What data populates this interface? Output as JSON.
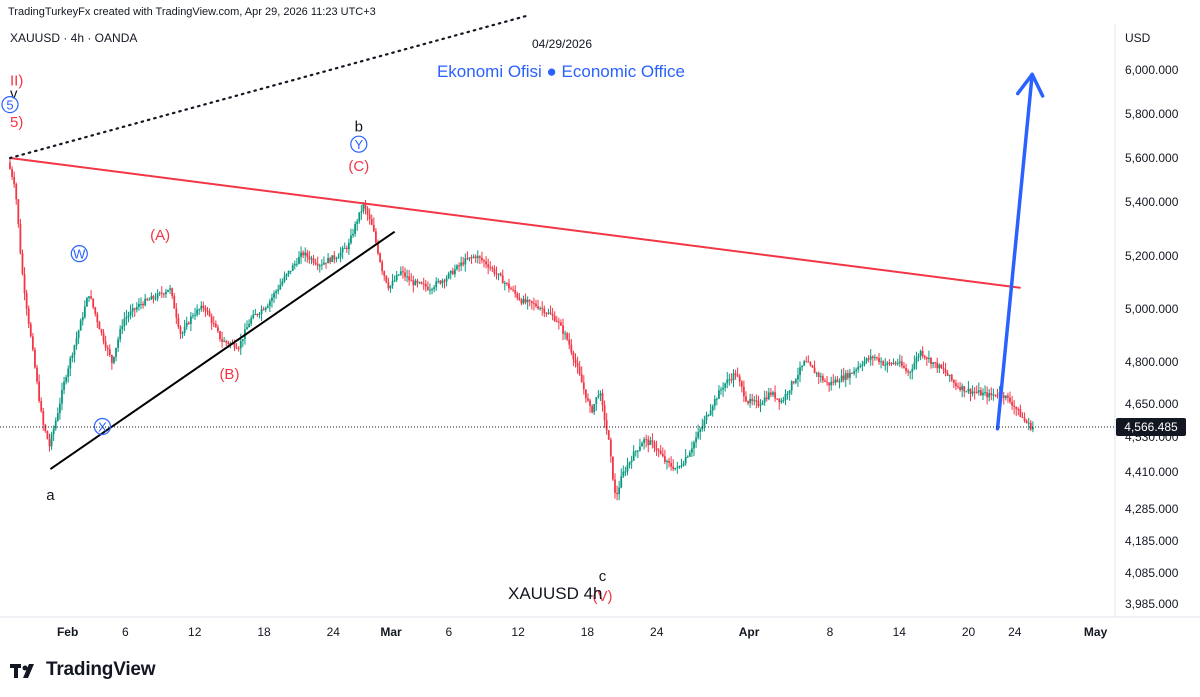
{
  "header": {
    "credit": "TradingTurkeyFx created with TradingView.com, Apr 29, 2026 11:23 UTC+3"
  },
  "footer": {
    "logo_text": "TradingView"
  },
  "colors": {
    "up": "#089981",
    "down": "#f23645",
    "resistance": "#f23645",
    "support": "#000000",
    "forecast": "#2962ff",
    "wave_red": "#f23645",
    "wave_blue": "#2962ff",
    "text": "#131722"
  },
  "chart_data": {
    "type": "candlestick",
    "symbol_line": "XAUUSD · 4h · OANDA",
    "watermark": "XAUUSD   4h",
    "date_label": "04/29/2026",
    "brand_note": "Ekonomi Ofisi ● Economic Office",
    "currency": "USD",
    "last_price": "4,566.485",
    "last_value": 4566.485,
    "y_ticks": [
      {
        "label": "6,000.000",
        "value": 6000
      },
      {
        "label": "5,800.000",
        "value": 5800
      },
      {
        "label": "5,600.000",
        "value": 5600
      },
      {
        "label": "5,400.000",
        "value": 5400
      },
      {
        "label": "5,200.000",
        "value": 5200
      },
      {
        "label": "5,000.000",
        "value": 5000
      },
      {
        "label": "4,800.000",
        "value": 4800
      },
      {
        "label": "4,650.000",
        "value": 4650
      },
      {
        "label": "4,530.000",
        "value": 4530
      },
      {
        "label": "4,410.000",
        "value": 4410
      },
      {
        "label": "4,285.000",
        "value": 4285
      },
      {
        "label": "4,185.000",
        "value": 4185
      },
      {
        "label": "4,085.000",
        "value": 4085
      },
      {
        "label": "3,985.000",
        "value": 3985
      }
    ],
    "x_ticks": [
      {
        "label": "Feb",
        "bold": true,
        "day": 3
      },
      {
        "label": "6",
        "bold": false,
        "day": 8
      },
      {
        "label": "12",
        "bold": false,
        "day": 14
      },
      {
        "label": "18",
        "bold": false,
        "day": 20
      },
      {
        "label": "24",
        "bold": false,
        "day": 26
      },
      {
        "label": "Mar",
        "bold": true,
        "day": 31
      },
      {
        "label": "6",
        "bold": false,
        "day": 36
      },
      {
        "label": "12",
        "bold": false,
        "day": 42
      },
      {
        "label": "18",
        "bold": false,
        "day": 48
      },
      {
        "label": "24",
        "bold": false,
        "day": 54
      },
      {
        "label": "Apr",
        "bold": true,
        "day": 62
      },
      {
        "label": "8",
        "bold": false,
        "day": 69
      },
      {
        "label": "14",
        "bold": false,
        "day": 75
      },
      {
        "label": "20",
        "bold": false,
        "day": 81
      },
      {
        "label": "24",
        "bold": false,
        "day": 85
      },
      {
        "label": "May",
        "bold": true,
        "day": 92
      }
    ],
    "price_path": [
      {
        "day": 0,
        "price": 5580
      },
      {
        "day": 0.6,
        "price": 5480
      },
      {
        "day": 1.2,
        "price": 5150
      },
      {
        "day": 1.8,
        "price": 4950
      },
      {
        "day": 2.4,
        "price": 4760
      },
      {
        "day": 3,
        "price": 4580
      },
      {
        "day": 3.6,
        "price": 4500
      },
      {
        "day": 4.2,
        "price": 4600
      },
      {
        "day": 5,
        "price": 4750
      },
      {
        "day": 6,
        "price": 4900
      },
      {
        "day": 7,
        "price": 5060
      },
      {
        "day": 8,
        "price": 4920
      },
      {
        "day": 9,
        "price": 4800
      },
      {
        "day": 10,
        "price": 4960
      },
      {
        "day": 11.5,
        "price": 5020
      },
      {
        "day": 13,
        "price": 5050
      },
      {
        "day": 14,
        "price": 5080
      },
      {
        "day": 15,
        "price": 4900
      },
      {
        "day": 16,
        "price": 4980
      },
      {
        "day": 17,
        "price": 5010
      },
      {
        "day": 18.5,
        "price": 4880
      },
      {
        "day": 20,
        "price": 4860
      },
      {
        "day": 21,
        "price": 4960
      },
      {
        "day": 22.5,
        "price": 5020
      },
      {
        "day": 24,
        "price": 5120
      },
      {
        "day": 25.5,
        "price": 5210
      },
      {
        "day": 27,
        "price": 5170
      },
      {
        "day": 28.5,
        "price": 5200
      },
      {
        "day": 29.5,
        "price": 5240
      },
      {
        "day": 30.2,
        "price": 5330
      },
      {
        "day": 30.8,
        "price": 5390
      },
      {
        "day": 31.6,
        "price": 5300
      },
      {
        "day": 32.4,
        "price": 5150
      },
      {
        "day": 33,
        "price": 5080
      },
      {
        "day": 34,
        "price": 5140
      },
      {
        "day": 35,
        "price": 5100
      },
      {
        "day": 36.5,
        "price": 5080
      },
      {
        "day": 38,
        "price": 5120
      },
      {
        "day": 39.5,
        "price": 5180
      },
      {
        "day": 40.5,
        "price": 5200
      },
      {
        "day": 41.5,
        "price": 5170
      },
      {
        "day": 43,
        "price": 5100
      },
      {
        "day": 44.5,
        "price": 5030
      },
      {
        "day": 46,
        "price": 5010
      },
      {
        "day": 47.5,
        "price": 4960
      },
      {
        "day": 48.5,
        "price": 4880
      },
      {
        "day": 49.5,
        "price": 4750
      },
      {
        "day": 50.5,
        "price": 4620
      },
      {
        "day": 51.2,
        "price": 4700
      },
      {
        "day": 52,
        "price": 4520
      },
      {
        "day": 52.6,
        "price": 4320
      },
      {
        "day": 53.2,
        "price": 4400
      },
      {
        "day": 54,
        "price": 4460
      },
      {
        "day": 55,
        "price": 4520
      },
      {
        "day": 56,
        "price": 4500
      },
      {
        "day": 57,
        "price": 4440
      },
      {
        "day": 58,
        "price": 4420
      },
      {
        "day": 59,
        "price": 4480
      },
      {
        "day": 60,
        "price": 4560
      },
      {
        "day": 61,
        "price": 4650
      },
      {
        "day": 62,
        "price": 4720
      },
      {
        "day": 63,
        "price": 4760
      },
      {
        "day": 64,
        "price": 4660
      },
      {
        "day": 65,
        "price": 4650
      },
      {
        "day": 66,
        "price": 4690
      },
      {
        "day": 67,
        "price": 4660
      },
      {
        "day": 68,
        "price": 4730
      },
      {
        "day": 69,
        "price": 4800
      },
      {
        "day": 70,
        "price": 4760
      },
      {
        "day": 71,
        "price": 4720
      },
      {
        "day": 72,
        "price": 4740
      },
      {
        "day": 73,
        "price": 4760
      },
      {
        "day": 74,
        "price": 4800
      },
      {
        "day": 75,
        "price": 4820
      },
      {
        "day": 76,
        "price": 4790
      },
      {
        "day": 77,
        "price": 4800
      },
      {
        "day": 78,
        "price": 4760
      },
      {
        "day": 79,
        "price": 4840
      },
      {
        "day": 80,
        "price": 4800
      },
      {
        "day": 81,
        "price": 4770
      },
      {
        "day": 82,
        "price": 4720
      },
      {
        "day": 83,
        "price": 4700
      },
      {
        "day": 84,
        "price": 4690
      },
      {
        "day": 85,
        "price": 4680
      },
      {
        "day": 86,
        "price": 4690
      },
      {
        "day": 87,
        "price": 4650
      },
      {
        "day": 88,
        "price": 4590
      },
      {
        "day": 88.6,
        "price": 4566
      }
    ],
    "resistance_line": {
      "from": {
        "day": 0,
        "price": 5600
      },
      "to": {
        "day": 87.5,
        "price": 5080
      }
    },
    "support_line": {
      "from": {
        "day": 3.5,
        "price": 4420
      },
      "to": {
        "day": 33.3,
        "price": 5290
      }
    },
    "dotted_line": {
      "from": {
        "day": 0,
        "price": 5600
      },
      "to": {
        "day": 45,
        "price": 6250
      }
    },
    "forecast_arrow": {
      "from": {
        "day": 85.5,
        "price": 4560
      },
      "to": {
        "day": 88.5,
        "price": 5980
      }
    },
    "wave_labels": [
      {
        "text": "II)",
        "day": 0,
        "price": 5930,
        "color": "#f23645",
        "anchor": "start"
      },
      {
        "text": "v",
        "day": 0,
        "price": 5870,
        "color": "#131722",
        "anchor": "start"
      },
      {
        "text": "5",
        "day": 0,
        "price": 5820,
        "color": "#2962ff",
        "circle": true,
        "anchor": "start"
      },
      {
        "text": "5)",
        "day": 0,
        "price": 5740,
        "color": "#f23645",
        "anchor": "start"
      },
      {
        "text": "b",
        "day": 30.2,
        "price": 5720,
        "color": "#131722"
      },
      {
        "text": "Y",
        "day": 30.2,
        "price": 5640,
        "color": "#2962ff",
        "circle": true
      },
      {
        "text": "(C)",
        "day": 30.2,
        "price": 5540,
        "color": "#f23645"
      },
      {
        "text": "(A)",
        "day": 13,
        "price": 5260,
        "color": "#f23645"
      },
      {
        "text": "W",
        "day": 6,
        "price": 5190,
        "color": "#2962ff",
        "circle": true
      },
      {
        "text": "(B)",
        "day": 19,
        "price": 4740,
        "color": "#f23645"
      },
      {
        "text": "X",
        "day": 8,
        "price": 4550,
        "color": "#2962ff",
        "circle": true
      },
      {
        "text": "a",
        "day": 3.5,
        "price": 4315,
        "color": "#131722"
      },
      {
        "text": "c",
        "day": 51.3,
        "price": 4060,
        "color": "#131722"
      },
      {
        "text": "(V)",
        "day": 51.3,
        "price": 3995,
        "color": "#f23645"
      }
    ]
  }
}
